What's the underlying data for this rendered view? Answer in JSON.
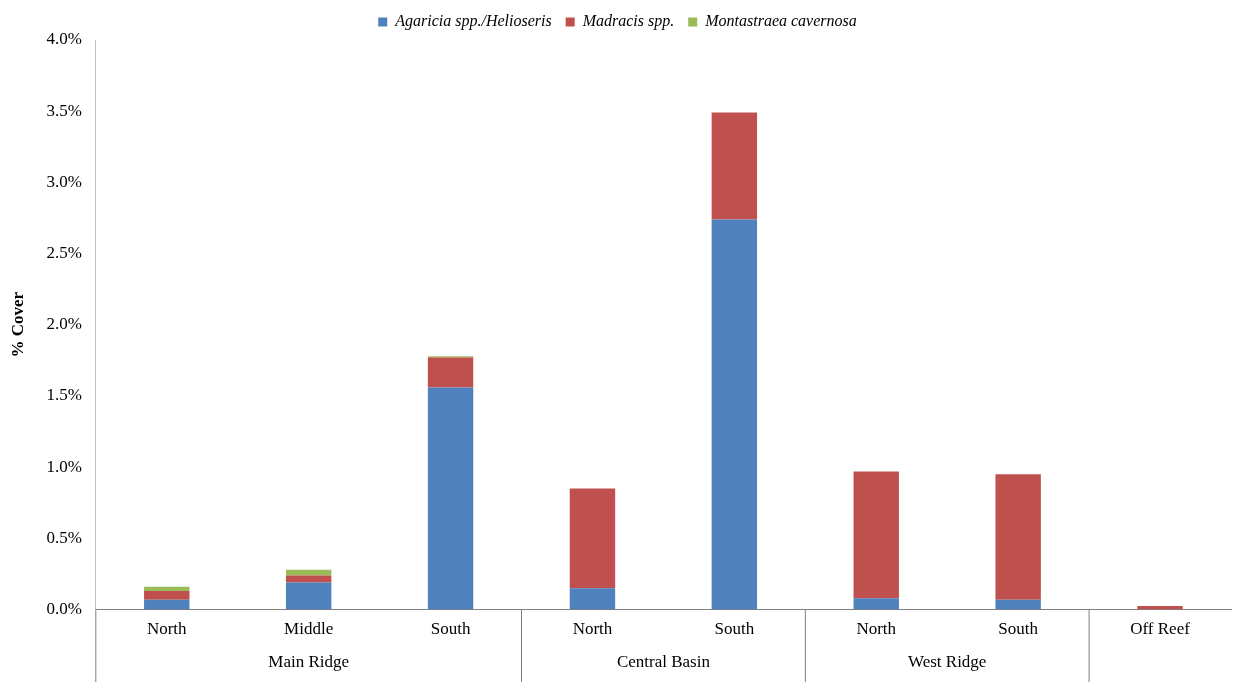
{
  "chart_data": {
    "type": "bar",
    "stacked": true,
    "ylabel": "% Cover",
    "legend": "top",
    "grid": false,
    "categories": [
      "North",
      "Middle",
      "South",
      "North",
      "South",
      "North",
      "South",
      "Off Reef"
    ],
    "series": [
      {
        "name": "Agaricia spp./Helioseris",
        "color": "#4f81bd",
        "values": [
          0.07,
          0.19,
          1.56,
          0.15,
          2.74,
          0.08,
          0.07,
          0
        ]
      },
      {
        "name": "Madracis spp.",
        "color": "#c0504d",
        "values": [
          0.06,
          0.05,
          0.21,
          0.7,
          0.75,
          0.89,
          0.88,
          0.025
        ]
      },
      {
        "name": "Montastraea cavernosa",
        "color": "#9bbb59",
        "values": [
          0.03,
          0.04,
          0.01,
          0,
          0,
          0,
          0,
          0
        ]
      }
    ],
    "ylim": [
      0,
      4
    ],
    "yticks": [
      {
        "value": 0,
        "label": "0.0%"
      },
      {
        "value": 0.5,
        "label": "0.5%"
      },
      {
        "value": 1,
        "label": "1.0%"
      },
      {
        "value": 1.5,
        "label": "1.5%"
      },
      {
        "value": 2,
        "label": "2.0%"
      },
      {
        "value": 2.5,
        "label": "2.5%"
      },
      {
        "value": 3,
        "label": "3.0%"
      },
      {
        "value": 3.5,
        "label": "3.5%"
      },
      {
        "value": 4,
        "label": "4.0%"
      }
    ],
    "annotations": [
      "Main Ridge",
      "Central Basin",
      "West Ridge"
    ]
  }
}
